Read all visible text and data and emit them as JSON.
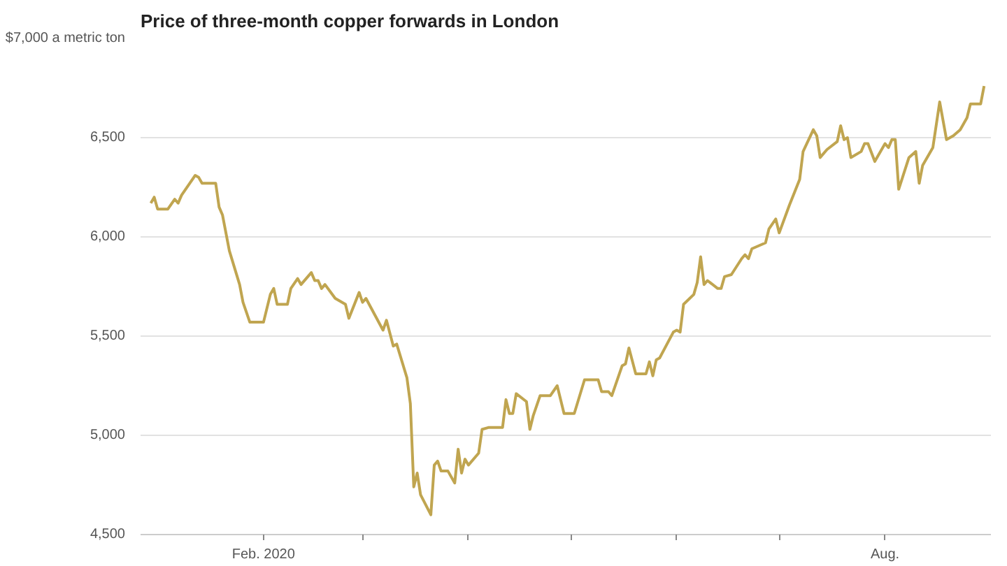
{
  "chart_data": {
    "type": "line",
    "title": "Price of three-month copper forwards in London",
    "x": [
      "2019-12-30",
      "2019-12-31",
      "2020-01-01",
      "2020-01-04",
      "2020-01-06",
      "2020-01-07",
      "2020-01-08",
      "2020-01-12",
      "2020-01-13",
      "2020-01-14",
      "2020-01-18",
      "2020-01-19",
      "2020-01-20",
      "2020-01-22",
      "2020-01-25",
      "2020-01-26",
      "2020-01-28",
      "2020-02-01",
      "2020-02-03",
      "2020-02-04",
      "2020-02-05",
      "2020-02-08",
      "2020-02-09",
      "2020-02-11",
      "2020-02-12",
      "2020-02-15",
      "2020-02-16",
      "2020-02-17",
      "2020-02-18",
      "2020-02-19",
      "2020-02-22",
      "2020-02-25",
      "2020-02-26",
      "2020-02-29",
      "2020-03-01",
      "2020-03-02",
      "2020-03-07",
      "2020-03-08",
      "2020-03-10",
      "2020-03-11",
      "2020-03-14",
      "2020-03-15",
      "2020-03-16",
      "2020-03-17",
      "2020-03-18",
      "2020-03-21",
      "2020-03-22",
      "2020-03-23",
      "2020-03-24",
      "2020-03-26",
      "2020-03-28",
      "2020-03-29",
      "2020-03-30",
      "2020-03-31",
      "2020-04-01",
      "2020-04-04",
      "2020-04-05",
      "2020-04-07",
      "2020-04-11",
      "2020-04-12",
      "2020-04-13",
      "2020-04-14",
      "2020-04-15",
      "2020-04-18",
      "2020-04-19",
      "2020-04-20",
      "2020-04-22",
      "2020-04-25",
      "2020-04-27",
      "2020-04-29",
      "2020-05-02",
      "2020-05-05",
      "2020-05-09",
      "2020-05-10",
      "2020-05-12",
      "2020-05-13",
      "2020-05-16",
      "2020-05-17",
      "2020-05-18",
      "2020-05-20",
      "2020-05-23",
      "2020-05-24",
      "2020-05-25",
      "2020-05-26",
      "2020-05-27",
      "2020-05-31",
      "2020-06-01",
      "2020-06-02",
      "2020-06-03",
      "2020-06-06",
      "2020-06-07",
      "2020-06-08",
      "2020-06-09",
      "2020-06-10",
      "2020-06-13",
      "2020-06-14",
      "2020-06-15",
      "2020-06-17",
      "2020-06-20",
      "2020-06-21",
      "2020-06-22",
      "2020-06-23",
      "2020-06-27",
      "2020-06-28",
      "2020-06-30",
      "2020-07-01",
      "2020-07-04",
      "2020-07-07",
      "2020-07-08",
      "2020-07-11",
      "2020-07-12",
      "2020-07-13",
      "2020-07-15",
      "2020-07-18",
      "2020-07-19",
      "2020-07-20",
      "2020-07-21",
      "2020-07-22",
      "2020-07-25",
      "2020-07-26",
      "2020-07-27",
      "2020-07-29",
      "2020-08-01",
      "2020-08-02",
      "2020-08-03",
      "2020-08-04",
      "2020-08-05",
      "2020-08-08",
      "2020-08-10",
      "2020-08-11",
      "2020-08-12",
      "2020-08-15",
      "2020-08-17",
      "2020-08-19",
      "2020-08-21",
      "2020-08-23",
      "2020-08-25",
      "2020-08-26",
      "2020-08-29",
      "2020-08-30"
    ],
    "series": [
      {
        "color": "#c0a550",
        "values": [
          6170,
          6200,
          6140,
          6140,
          6190,
          6170,
          6210,
          6310,
          6300,
          6270,
          6270,
          6150,
          6110,
          5930,
          5760,
          5670,
          5570,
          5570,
          5710,
          5740,
          5660,
          5660,
          5740,
          5790,
          5760,
          5820,
          5780,
          5780,
          5740,
          5760,
          5690,
          5660,
          5590,
          5720,
          5670,
          5690,
          5530,
          5580,
          5450,
          5460,
          5290,
          5160,
          4740,
          4810,
          4700,
          4600,
          4850,
          4870,
          4820,
          4820,
          4760,
          4930,
          4810,
          4880,
          4850,
          4910,
          5030,
          5040,
          5040,
          5180,
          5110,
          5110,
          5210,
          5170,
          5030,
          5100,
          5200,
          5200,
          5250,
          5110,
          5110,
          5280,
          5280,
          5220,
          5220,
          5200,
          5350,
          5360,
          5440,
          5310,
          5310,
          5370,
          5300,
          5380,
          5390,
          5520,
          5530,
          5520,
          5660,
          5710,
          5770,
          5900,
          5760,
          5780,
          5740,
          5740,
          5800,
          5810,
          5890,
          5910,
          5890,
          5940,
          5970,
          6040,
          6090,
          6020,
          6160,
          6290,
          6430,
          6540,
          6510,
          6400,
          6440,
          6480,
          6560,
          6490,
          6500,
          6400,
          6430,
          6470,
          6470,
          6380,
          6470,
          6450,
          6490,
          6490,
          6240,
          6400,
          6430,
          6270,
          6360,
          6450,
          6680,
          6490,
          6510,
          6540,
          6600,
          6670,
          6670,
          6760
        ]
      }
    ],
    "xlim": [
      "2019-12-27",
      "2020-09-01"
    ],
    "xticks": [
      {
        "value": "2020-02-01",
        "label": "Feb. 2020"
      },
      {
        "value": "2020-03-01",
        "label": null
      },
      {
        "value": "2020-04-01",
        "label": null
      },
      {
        "value": "2020-05-01",
        "label": null
      },
      {
        "value": "2020-06-01",
        "label": null
      },
      {
        "value": "2020-07-01",
        "label": null
      },
      {
        "value": "2020-08-01",
        "label": "Aug."
      }
    ],
    "ylim": [
      4500,
      7000
    ],
    "yticks": [
      {
        "value": 4500,
        "label": "4,500"
      },
      {
        "value": 5000,
        "label": "5,000"
      },
      {
        "value": 5500,
        "label": "5,500"
      },
      {
        "value": 6000,
        "label": "6,000"
      },
      {
        "value": 6500,
        "label": "6,500"
      },
      {
        "value": 7000,
        "label": "$7,000 a metric ton"
      }
    ],
    "grid": "y",
    "marker": "none",
    "line_style": "solid"
  }
}
